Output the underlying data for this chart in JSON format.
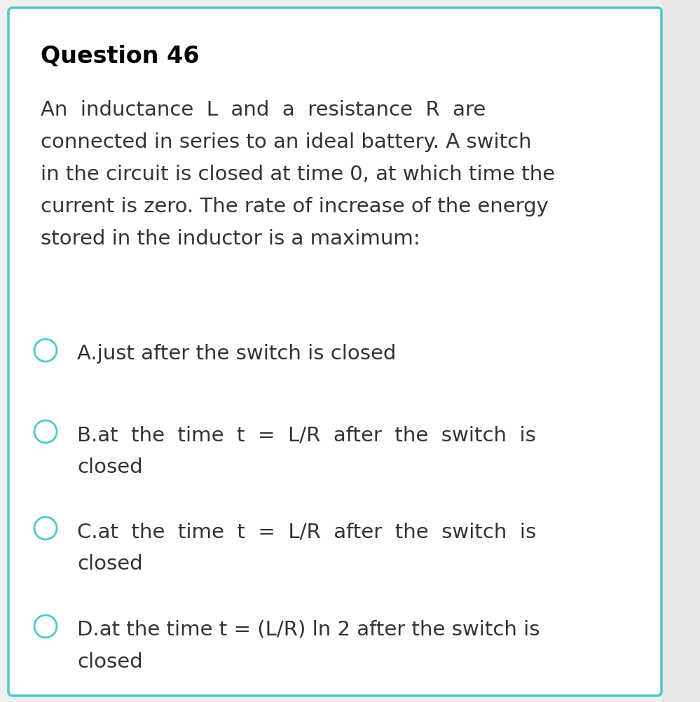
{
  "title": "Question 46",
  "question_lines": [
    "An  inductance  L  and  a  resistance  R  are",
    "connected in series to an ideal battery. A switch",
    "in the circuit is closed at time 0, at which time the",
    "current is zero. The rate of increase of the energy",
    "stored in the inductor is a maximum:"
  ],
  "options": [
    {
      "line1": "A.just after the switch is closed",
      "line2": null
    },
    {
      "line1": "B.at  the  time  t  =  L/R  after  the  switch  is",
      "line2": "closed"
    },
    {
      "line1": "C.at  the  time  t  =  L/R  after  the  switch  is",
      "line2": "closed"
    },
    {
      "line1": "D.at the time t = (L/R) ln 2 after the switch is",
      "line2": "closed"
    }
  ],
  "bg_color": "#ffffff",
  "outer_bg_color": "#f0f0f0",
  "border_color": "#4ec8c8",
  "title_color": "#000000",
  "text_color": "#333333",
  "circle_color": "#4ec8c8",
  "title_fontsize": 24,
  "question_fontsize": 21,
  "option_fontsize": 21,
  "scrollbar_color": "#d8d8d8"
}
